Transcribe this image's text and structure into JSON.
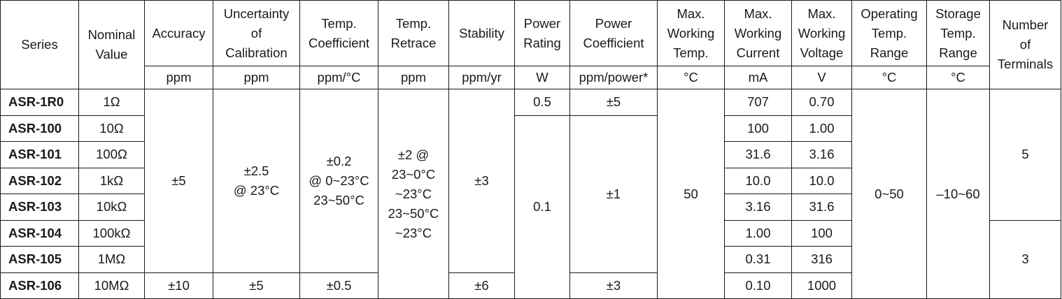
{
  "headers": {
    "series": "Series",
    "nominal_value": "Nominal\nValue",
    "accuracy": "Accuracy",
    "uncertainty": "Uncertainty\nof\nCalibration",
    "temp_coefficient": "Temp.\nCoefficient",
    "temp_retrace": "Temp.\nRetrace",
    "stability": "Stability",
    "power_rating": "Power\nRating",
    "power_coefficient": "Power\nCoefficient",
    "max_working_temp": "Max.\nWorking\nTemp.",
    "max_working_current": "Max.\nWorking\nCurrent",
    "max_working_voltage": "Max.\nWorking\nVoltage",
    "operating_temp_range": "Operating\nTemp.\nRange",
    "storage_temp_range": "Storage\nTemp.\nRange",
    "number_of_terminals": "Number\nof\nTerminals"
  },
  "units": {
    "accuracy": "ppm",
    "uncertainty": "ppm",
    "temp_coefficient": "ppm/°C",
    "temp_retrace": "ppm",
    "stability": "ppm/yr",
    "power_rating": "W",
    "power_coefficient": "ppm/power*",
    "max_working_temp": "°C",
    "max_working_current": "mA",
    "max_working_voltage": "V",
    "operating_temp_range": "°C",
    "storage_temp_range": "°C"
  },
  "rows": [
    {
      "series": "ASR-1R0",
      "nominal": "1Ω",
      "current": "707",
      "voltage": "0.70"
    },
    {
      "series": "ASR-100",
      "nominal": "10Ω",
      "current": "100",
      "voltage": "1.00"
    },
    {
      "series": "ASR-101",
      "nominal": "100Ω",
      "current": "31.6",
      "voltage": "3.16"
    },
    {
      "series": "ASR-102",
      "nominal": "1kΩ",
      "current": "10.0",
      "voltage": "10.0"
    },
    {
      "series": "ASR-103",
      "nominal": "10kΩ",
      "current": "3.16",
      "voltage": "31.6"
    },
    {
      "series": "ASR-104",
      "nominal": "100kΩ",
      "current": "1.00",
      "voltage": "100"
    },
    {
      "series": "ASR-105",
      "nominal": "1MΩ",
      "current": "0.31",
      "voltage": "316"
    },
    {
      "series": "ASR-106",
      "nominal": "10MΩ",
      "current": "0.10",
      "voltage": "1000"
    }
  ],
  "merged": {
    "accuracy_main": "±5",
    "accuracy_106": "±10",
    "uncertainty_main": "±2.5\n@ 23°C",
    "uncertainty_106": "±5",
    "temp_coefficient_main": "±0.2\n@ 0~23°C\n23~50°C",
    "temp_coefficient_106": "±0.5",
    "temp_retrace": "±2 @\n23~0°C\n~23°C\n23~50°C\n~23°C",
    "stability_main": "±3",
    "stability_106": "±6",
    "power_rating_1r0": "0.5",
    "power_rating_rest": "0.1",
    "power_coefficient_1r0": "±5",
    "power_coefficient_mid": "±1",
    "power_coefficient_106": "±3",
    "max_working_temp": "50",
    "operating_temp_range": "0~50",
    "storage_temp_range": "–10~60",
    "terminals_upper": "5",
    "terminals_lower": "3"
  }
}
